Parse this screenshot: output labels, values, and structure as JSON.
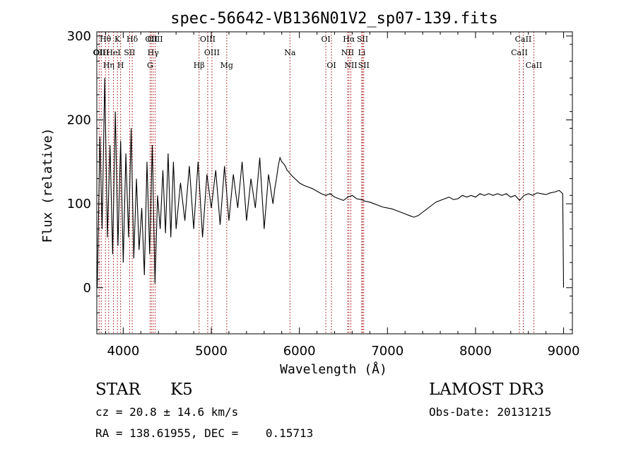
{
  "chart_data": {
    "type": "line",
    "title": "spec-56642-VB136N01V2_sp07-139.fits",
    "xlabel": "Wavelength (Å)",
    "ylabel": "Flux (relative)",
    "xlim": [
      3700,
      9100
    ],
    "ylim": [
      -55,
      305
    ],
    "xticks": [
      4000,
      5000,
      6000,
      7000,
      8000,
      9000
    ],
    "yticks": [
      0,
      100,
      200,
      300
    ],
    "grid": false,
    "colors": {
      "spectrum": "#000000",
      "line_marker": "#a00000"
    },
    "series": [
      {
        "name": "spectrum",
        "x": [
          3705,
          3735,
          3760,
          3790,
          3820,
          3850,
          3880,
          3910,
          3940,
          3970,
          4000,
          4030,
          4060,
          4090,
          4120,
          4150,
          4180,
          4210,
          4240,
          4270,
          4300,
          4330,
          4360,
          4390,
          4420,
          4450,
          4480,
          4510,
          4540,
          4570,
          4600,
          4650,
          4700,
          4750,
          4800,
          4850,
          4900,
          4950,
          5000,
          5050,
          5100,
          5150,
          5200,
          5250,
          5300,
          5350,
          5400,
          5450,
          5500,
          5550,
          5600,
          5650,
          5700,
          5720,
          5740,
          5760,
          5780,
          5800,
          5820,
          5840,
          5860,
          5880,
          5900,
          5950,
          6000,
          6050,
          6100,
          6150,
          6200,
          6250,
          6300,
          6350,
          6400,
          6450,
          6500,
          6550,
          6600,
          6650,
          6700,
          6750,
          6800,
          6850,
          6900,
          6950,
          7000,
          7050,
          7100,
          7150,
          7200,
          7250,
          7300,
          7350,
          7400,
          7450,
          7500,
          7550,
          7600,
          7650,
          7700,
          7750,
          7800,
          7850,
          7900,
          7950,
          8000,
          8050,
          8100,
          8150,
          8200,
          8250,
          8300,
          8350,
          8400,
          8450,
          8500,
          8550,
          8600,
          8650,
          8700,
          8750,
          8800,
          8850,
          8900,
          8950,
          8990,
          9000
        ],
        "y": [
          0,
          180,
          70,
          250,
          60,
          170,
          40,
          210,
          50,
          175,
          30,
          160,
          60,
          190,
          35,
          130,
          45,
          95,
          15,
          150,
          40,
          170,
          5,
          110,
          70,
          140,
          65,
          160,
          60,
          150,
          70,
          125,
          80,
          145,
          70,
          150,
          60,
          135,
          95,
          140,
          75,
          145,
          80,
          135,
          95,
          150,
          80,
          130,
          95,
          155,
          70,
          135,
          100,
          118,
          130,
          145,
          155,
          150,
          148,
          145,
          140,
          138,
          135,
          130,
          125,
          122,
          120,
          118,
          115,
          112,
          110,
          112,
          108,
          106,
          104,
          108,
          110,
          106,
          105,
          103,
          102,
          100,
          98,
          96,
          95,
          94,
          92,
          90,
          88,
          86,
          84,
          86,
          90,
          94,
          98,
          102,
          104,
          106,
          108,
          105,
          106,
          110,
          108,
          110,
          108,
          112,
          110,
          112,
          110,
          112,
          110,
          112,
          108,
          110,
          104,
          110,
          112,
          110,
          113,
          112,
          111,
          113,
          114,
          116,
          112,
          0
        ]
      }
    ],
    "line_markers": [
      {
        "label": "Hθ",
        "wavelength": 3798
      },
      {
        "label": "K",
        "wavelength": 3934
      },
      {
        "label": "Hδ",
        "wavelength": 4102
      },
      {
        "label": "OII",
        "wavelength": 4320
      },
      {
        "label": "OIII",
        "wavelength": 4363
      },
      {
        "label": "OIII",
        "wavelength": 4959
      },
      {
        "label": "OI",
        "wavelength": 6300
      },
      {
        "label": "Hα",
        "wavelength": 6563
      },
      {
        "label": "SII",
        "wavelength": 6717
      },
      {
        "label": "CaII",
        "wavelength": 8542
      },
      {
        "label": "OII",
        "wavelength": 3727
      },
      {
        "label": "HeI",
        "wavelength": 3889
      },
      {
        "label": "SII",
        "wavelength": 4072
      },
      {
        "label": "Hγ",
        "wavelength": 4340
      },
      {
        "label": "OIII",
        "wavelength": 5007
      },
      {
        "label": "Na",
        "wavelength": 5893
      },
      {
        "label": "NII",
        "wavelength": 6548
      },
      {
        "label": "Li",
        "wavelength": 6708
      },
      {
        "label": "CaII",
        "wavelength": 8498
      },
      {
        "label": "OIII",
        "wavelength": 3750
      },
      {
        "label": "Hη",
        "wavelength": 3835
      },
      {
        "label": "H",
        "wavelength": 3970
      },
      {
        "label": "G",
        "wavelength": 4305
      },
      {
        "label": "Hβ",
        "wavelength": 4861
      },
      {
        "label": "Mg",
        "wavelength": 5175
      },
      {
        "label": "OI",
        "wavelength": 6364
      },
      {
        "label": "NII",
        "wavelength": 6584
      },
      {
        "label": "SII",
        "wavelength": 6731
      },
      {
        "label": "CaII",
        "wavelength": 8662
      }
    ]
  },
  "info": {
    "class": "STAR",
    "subclass": "K5",
    "survey": "LAMOST DR3",
    "redshift": "cz = 20.8 ± 14.6 km/s",
    "obs_date": "Obs-Date: 20131215",
    "coords": "RA = 138.61955, DEC =    0.15713"
  }
}
